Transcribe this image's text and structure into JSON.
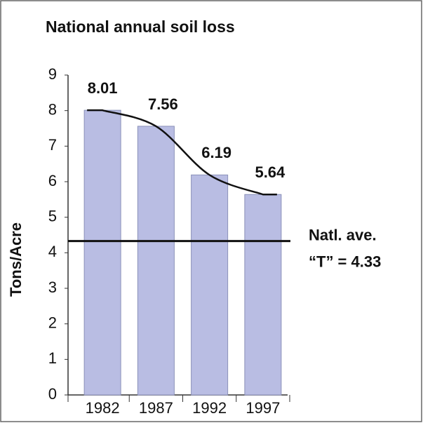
{
  "chart_data": {
    "type": "bar",
    "title": "National annual soil loss",
    "y_label": "Tons/Acre",
    "categories": [
      "1982",
      "1987",
      "1992",
      "1997"
    ],
    "values": [
      8.01,
      7.56,
      6.19,
      5.64
    ],
    "color": "#b9bde3",
    "trend_line": true,
    "reference_value": 4.33,
    "annotation": [
      "Natl. ave.",
      "“T” = 4.33"
    ],
    "ylim": [
      0,
      9
    ],
    "yticks": [
      0,
      1,
      2,
      3,
      4,
      5,
      6,
      7,
      8,
      9
    ],
    "grid": false
  }
}
